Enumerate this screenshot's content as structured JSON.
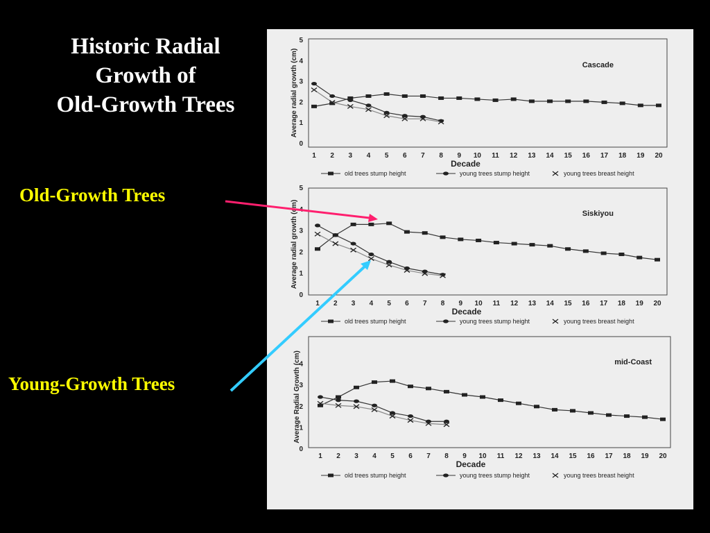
{
  "slide": {
    "title_lines": [
      "Historic Radial",
      "Growth of",
      "Old-Growth Trees"
    ],
    "old_label": "Old-Growth Trees",
    "young_label": "Young-Growth Trees",
    "label_color": "#ffff00",
    "old_arrow_color": "#ff1f6e",
    "young_arrow_color": "#33ccff",
    "background": "#000000",
    "title_color": "#ffffff"
  },
  "legend": {
    "old": "old trees stump height",
    "young_stump": "young trees stump height",
    "young_breast": "young trees breast height"
  },
  "chart_data": [
    {
      "type": "line",
      "panel": "Cascade",
      "xlabel": "Decade",
      "ylabel": "Average radial growth (cm)",
      "x": [
        1,
        2,
        3,
        4,
        5,
        6,
        7,
        8,
        9,
        10,
        11,
        12,
        13,
        14,
        15,
        16,
        17,
        18,
        19,
        20
      ],
      "ylim": [
        0,
        5
      ],
      "yticks": [
        0,
        1,
        2,
        3,
        4,
        5
      ],
      "series": [
        {
          "name": "old trees stump height",
          "x": [
            1,
            2,
            3,
            4,
            5,
            6,
            7,
            8,
            9,
            10,
            11,
            12,
            13,
            14,
            15,
            16,
            17,
            18,
            19,
            20
          ],
          "values": [
            1.8,
            1.95,
            2.2,
            2.3,
            2.4,
            2.3,
            2.3,
            2.2,
            2.2,
            2.15,
            2.1,
            2.15,
            2.05,
            2.05,
            2.05,
            2.05,
            2.0,
            1.95,
            1.85,
            1.85
          ]
        },
        {
          "name": "young trees stump height",
          "x": [
            1,
            2,
            3,
            4,
            5,
            6,
            7,
            8
          ],
          "values": [
            2.9,
            2.3,
            2.1,
            1.85,
            1.5,
            1.35,
            1.3,
            1.1
          ]
        },
        {
          "name": "young trees breast height",
          "x": [
            1,
            2,
            3,
            4,
            5,
            6,
            7,
            8
          ],
          "values": [
            2.6,
            2.0,
            1.8,
            1.65,
            1.35,
            1.2,
            1.2,
            1.05
          ]
        }
      ]
    },
    {
      "type": "line",
      "panel": "Siskiyou",
      "xlabel": "Decade",
      "ylabel": "Average radial growth (cm)",
      "x": [
        1,
        2,
        3,
        4,
        5,
        6,
        7,
        8,
        9,
        10,
        11,
        12,
        13,
        14,
        15,
        16,
        17,
        18,
        19,
        20
      ],
      "ylim": [
        0,
        5
      ],
      "yticks": [
        0,
        1,
        2,
        3,
        4,
        5
      ],
      "series": [
        {
          "name": "old trees stump height",
          "x": [
            1,
            2,
            3,
            4,
            5,
            6,
            7,
            8,
            9,
            10,
            11,
            12,
            13,
            14,
            15,
            16,
            17,
            18,
            19,
            20
          ],
          "values": [
            2.15,
            2.8,
            3.3,
            3.3,
            3.35,
            2.95,
            2.9,
            2.7,
            2.6,
            2.55,
            2.45,
            2.4,
            2.35,
            2.3,
            2.15,
            2.05,
            1.95,
            1.9,
            1.75,
            1.65
          ]
        },
        {
          "name": "young trees stump height",
          "x": [
            1,
            2,
            3,
            4,
            5,
            6,
            7,
            8
          ],
          "values": [
            3.25,
            2.8,
            2.4,
            1.9,
            1.55,
            1.25,
            1.1,
            0.95
          ]
        },
        {
          "name": "young trees breast height",
          "x": [
            1,
            2,
            3,
            4,
            5,
            6,
            7,
            8
          ],
          "values": [
            2.85,
            2.4,
            2.1,
            1.7,
            1.4,
            1.15,
            1.0,
            0.9
          ]
        }
      ]
    },
    {
      "type": "line",
      "panel": "mid-Coast",
      "xlabel": "Decade",
      "ylabel": "Average Radial Growth (cm)",
      "x": [
        1,
        2,
        3,
        4,
        5,
        6,
        7,
        8,
        9,
        10,
        11,
        12,
        13,
        14,
        15,
        16,
        17,
        18,
        19,
        20
      ],
      "ylim": [
        0,
        5
      ],
      "yticks": [
        0,
        1,
        2,
        3,
        4
      ],
      "series": [
        {
          "name": "old trees stump height",
          "x": [
            1,
            2,
            3,
            4,
            5,
            6,
            7,
            8,
            9,
            10,
            11,
            12,
            13,
            14,
            15,
            16,
            17,
            18,
            19,
            20
          ],
          "values": [
            2.05,
            2.45,
            2.9,
            3.15,
            3.2,
            2.95,
            2.85,
            2.7,
            2.55,
            2.45,
            2.3,
            2.15,
            2.0,
            1.85,
            1.8,
            1.7,
            1.6,
            1.55,
            1.5,
            1.4
          ]
        },
        {
          "name": "young trees stump height",
          "x": [
            1,
            2,
            3,
            4,
            5,
            6,
            7,
            8
          ],
          "values": [
            2.45,
            2.3,
            2.25,
            2.05,
            1.7,
            1.55,
            1.3,
            1.3
          ]
        },
        {
          "name": "young trees breast height",
          "x": [
            1,
            2,
            3,
            4,
            5,
            6,
            7,
            8
          ],
          "values": [
            2.15,
            2.05,
            2.0,
            1.85,
            1.55,
            1.35,
            1.2,
            1.15
          ]
        }
      ]
    }
  ]
}
